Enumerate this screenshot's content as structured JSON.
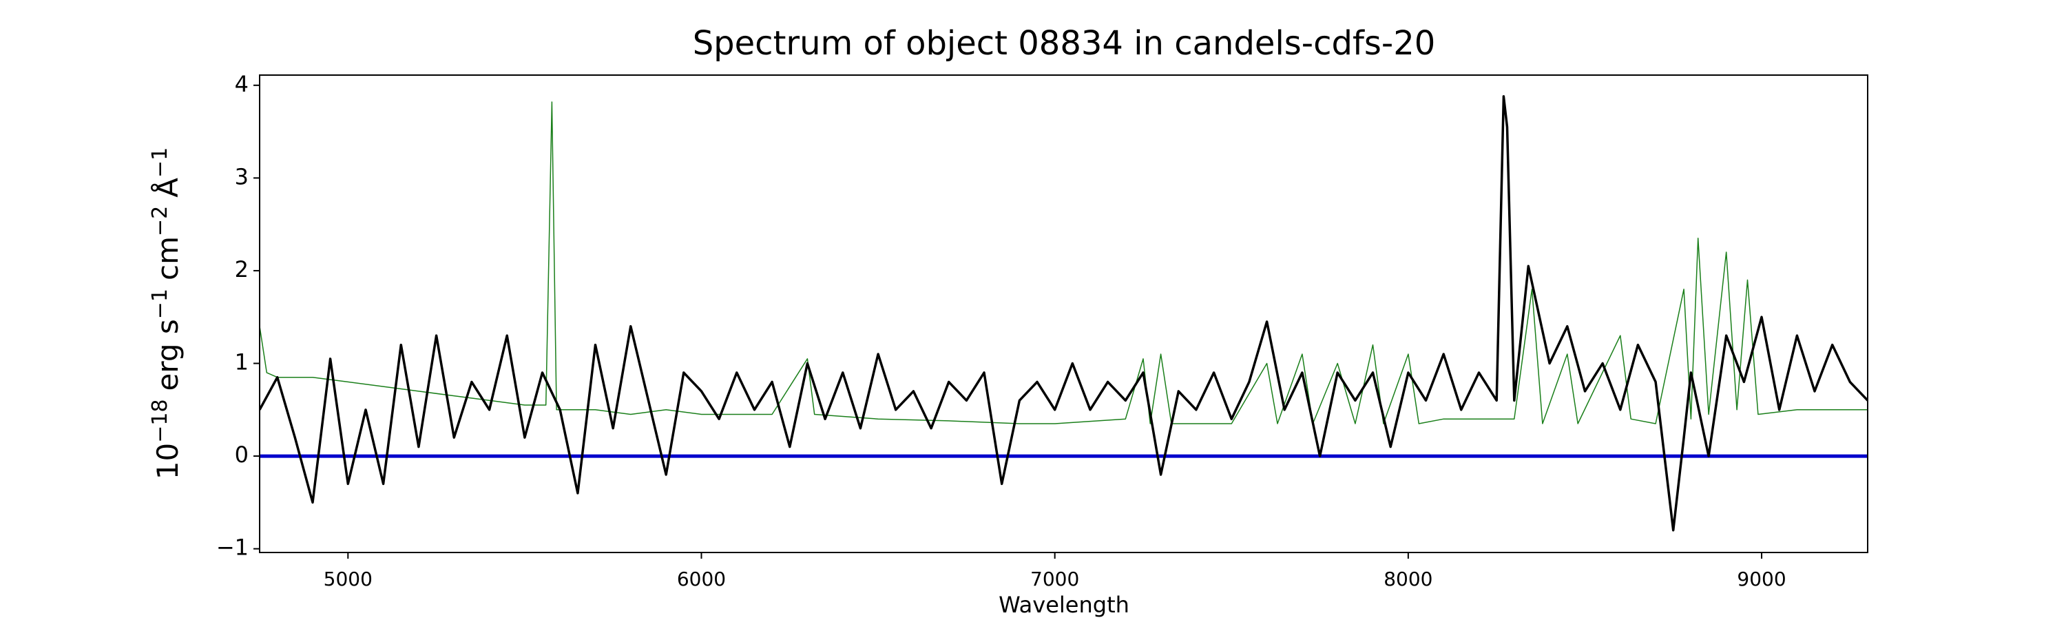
{
  "chart_data": {
    "type": "line",
    "title": "Spectrum of object 08834 in candels-cdfs-20",
    "xlabel": "Wavelength",
    "ylabel": [
      {
        "text": "10",
        "sup": "−18"
      },
      {
        "text": "erg s",
        "sup": "−1"
      },
      {
        "text": "cm",
        "sup": "−2"
      },
      {
        "text": "Å",
        "sup": "−1"
      }
    ],
    "xlim": [
      4750,
      9300
    ],
    "ylim": [
      -1.04,
      4.11
    ],
    "xticks": [
      5000,
      6000,
      7000,
      8000,
      9000
    ],
    "yticks": [
      {
        "value": -1,
        "label": "−1"
      },
      0,
      1,
      2,
      3,
      4
    ],
    "series": [
      {
        "color": "#1a7f1a",
        "width": 1.5,
        "x": [
          4750,
          4770,
          4800,
          4900,
          5000,
          5100,
          5200,
          5300,
          5400,
          5500,
          5560,
          5577,
          5590,
          5700,
          5800,
          5900,
          6000,
          6200,
          6300,
          6320,
          6500,
          6700,
          6900,
          7000,
          7200,
          7250,
          7270,
          7300,
          7330,
          7500,
          7600,
          7630,
          7700,
          7730,
          7800,
          7850,
          7900,
          7930,
          8000,
          8030,
          8100,
          8200,
          8300,
          8350,
          8380,
          8450,
          8480,
          8600,
          8630,
          8700,
          8780,
          8800,
          8820,
          8850,
          8900,
          8930,
          8960,
          8990,
          9100,
          9200,
          9300
        ],
        "values": [
          1.4,
          0.9,
          0.85,
          0.85,
          0.8,
          0.75,
          0.7,
          0.65,
          0.6,
          0.55,
          0.55,
          3.82,
          0.5,
          0.5,
          0.45,
          0.5,
          0.45,
          0.45,
          1.05,
          0.45,
          0.4,
          0.38,
          0.35,
          0.35,
          0.4,
          1.05,
          0.35,
          1.1,
          0.35,
          0.35,
          1.0,
          0.35,
          1.1,
          0.35,
          1.0,
          0.35,
          1.2,
          0.35,
          1.1,
          0.35,
          0.4,
          0.4,
          0.4,
          1.8,
          0.35,
          1.1,
          0.35,
          1.3,
          0.4,
          0.35,
          1.8,
          0.4,
          2.35,
          0.45,
          2.2,
          0.5,
          1.9,
          0.45,
          0.5,
          0.5,
          0.5
        ]
      },
      {
        "color": "#0000cc",
        "width": 5,
        "x": [
          4750,
          9300
        ],
        "values": [
          0,
          0
        ]
      },
      {
        "color": "#000000",
        "width": 3.5,
        "x": [
          4750,
          4800,
          4850,
          4900,
          4950,
          5000,
          5050,
          5100,
          5150,
          5200,
          5250,
          5300,
          5350,
          5400,
          5450,
          5500,
          5550,
          5600,
          5650,
          5700,
          5750,
          5800,
          5850,
          5900,
          5950,
          6000,
          6050,
          6100,
          6150,
          6200,
          6250,
          6300,
          6350,
          6400,
          6450,
          6500,
          6550,
          6600,
          6650,
          6700,
          6750,
          6800,
          6850,
          6900,
          6950,
          7000,
          7050,
          7100,
          7150,
          7200,
          7250,
          7300,
          7350,
          7400,
          7450,
          7500,
          7550,
          7600,
          7650,
          7700,
          7750,
          7800,
          7850,
          7900,
          7950,
          8000,
          8050,
          8100,
          8150,
          8200,
          8250,
          8270,
          8280,
          8300,
          8340,
          8400,
          8450,
          8500,
          8550,
          8600,
          8650,
          8700,
          8750,
          8780,
          8800,
          8850,
          8900,
          8950,
          9000,
          9050,
          9100,
          9150,
          9200,
          9250,
          9300
        ],
        "values": [
          0.5,
          0.85,
          0.2,
          -0.5,
          1.05,
          -0.3,
          0.5,
          -0.3,
          1.2,
          0.1,
          1.3,
          0.2,
          0.8,
          0.5,
          1.3,
          0.2,
          0.9,
          0.5,
          -0.4,
          1.2,
          0.3,
          1.4,
          0.6,
          -0.2,
          0.9,
          0.7,
          0.4,
          0.9,
          0.5,
          0.8,
          0.1,
          1.0,
          0.4,
          0.9,
          0.3,
          1.1,
          0.5,
          0.7,
          0.3,
          0.8,
          0.6,
          0.9,
          -0.3,
          0.6,
          0.8,
          0.5,
          1.0,
          0.5,
          0.8,
          0.6,
          0.9,
          -0.2,
          0.7,
          0.5,
          0.9,
          0.4,
          0.8,
          1.45,
          0.5,
          0.9,
          0.0,
          0.9,
          0.6,
          0.9,
          0.1,
          0.9,
          0.6,
          1.1,
          0.5,
          0.9,
          0.6,
          3.88,
          3.55,
          0.6,
          2.05,
          1.0,
          1.4,
          0.7,
          1.0,
          0.5,
          1.2,
          0.8,
          -0.8,
          0.2,
          0.9,
          0.0,
          1.3,
          0.8,
          1.5,
          0.5,
          1.3,
          0.7,
          1.2,
          0.8,
          0.6
        ]
      }
    ]
  }
}
